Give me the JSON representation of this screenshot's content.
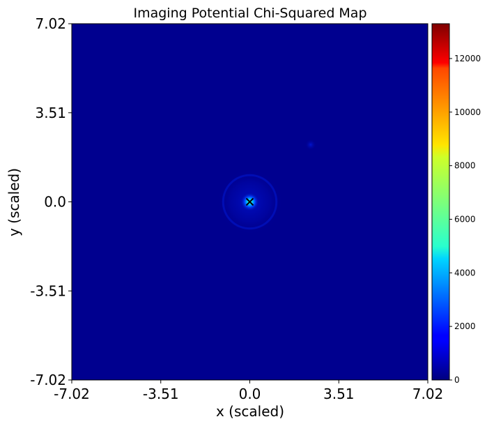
{
  "chart_data": {
    "type": "heatmap",
    "title": "Imaging Potential Chi-Squared Map",
    "xlabel": "x (scaled)",
    "ylabel": "y (scaled)",
    "xlim": [
      -7.02,
      7.02
    ],
    "ylim": [
      -7.02,
      7.02
    ],
    "x_ticks": [
      "-7.02",
      "-3.51",
      "0.0",
      "3.51",
      "7.02"
    ],
    "y_ticks": [
      "7.02",
      "3.51",
      "0.0",
      "-3.51",
      "-7.02"
    ],
    "colormap": "jet",
    "colorbar": {
      "min": 0,
      "max": 13300,
      "ticks": [
        {
          "value": 0,
          "label": "0"
        },
        {
          "value": 2000,
          "label": "2000"
        },
        {
          "value": 4000,
          "label": "4000"
        },
        {
          "value": 6000,
          "label": "6000"
        },
        {
          "value": 8000,
          "label": "8000"
        },
        {
          "value": 10000,
          "label": "10000"
        },
        {
          "value": 12000,
          "label": "12000"
        }
      ]
    },
    "background_value": 150,
    "features": [
      {
        "x": 0.0,
        "y": 0.0,
        "peak_value": 7000,
        "kind": "central peak"
      },
      {
        "x": 0.0,
        "y": 0.0,
        "ring_radius": 1.05,
        "value": 700,
        "kind": "faint ring"
      },
      {
        "x": 2.4,
        "y": 2.25,
        "peak_value": 600,
        "kind": "faint spot"
      }
    ],
    "marker": {
      "x": 0.0,
      "y": 0.0,
      "symbol": "x",
      "color": "#000000"
    }
  }
}
